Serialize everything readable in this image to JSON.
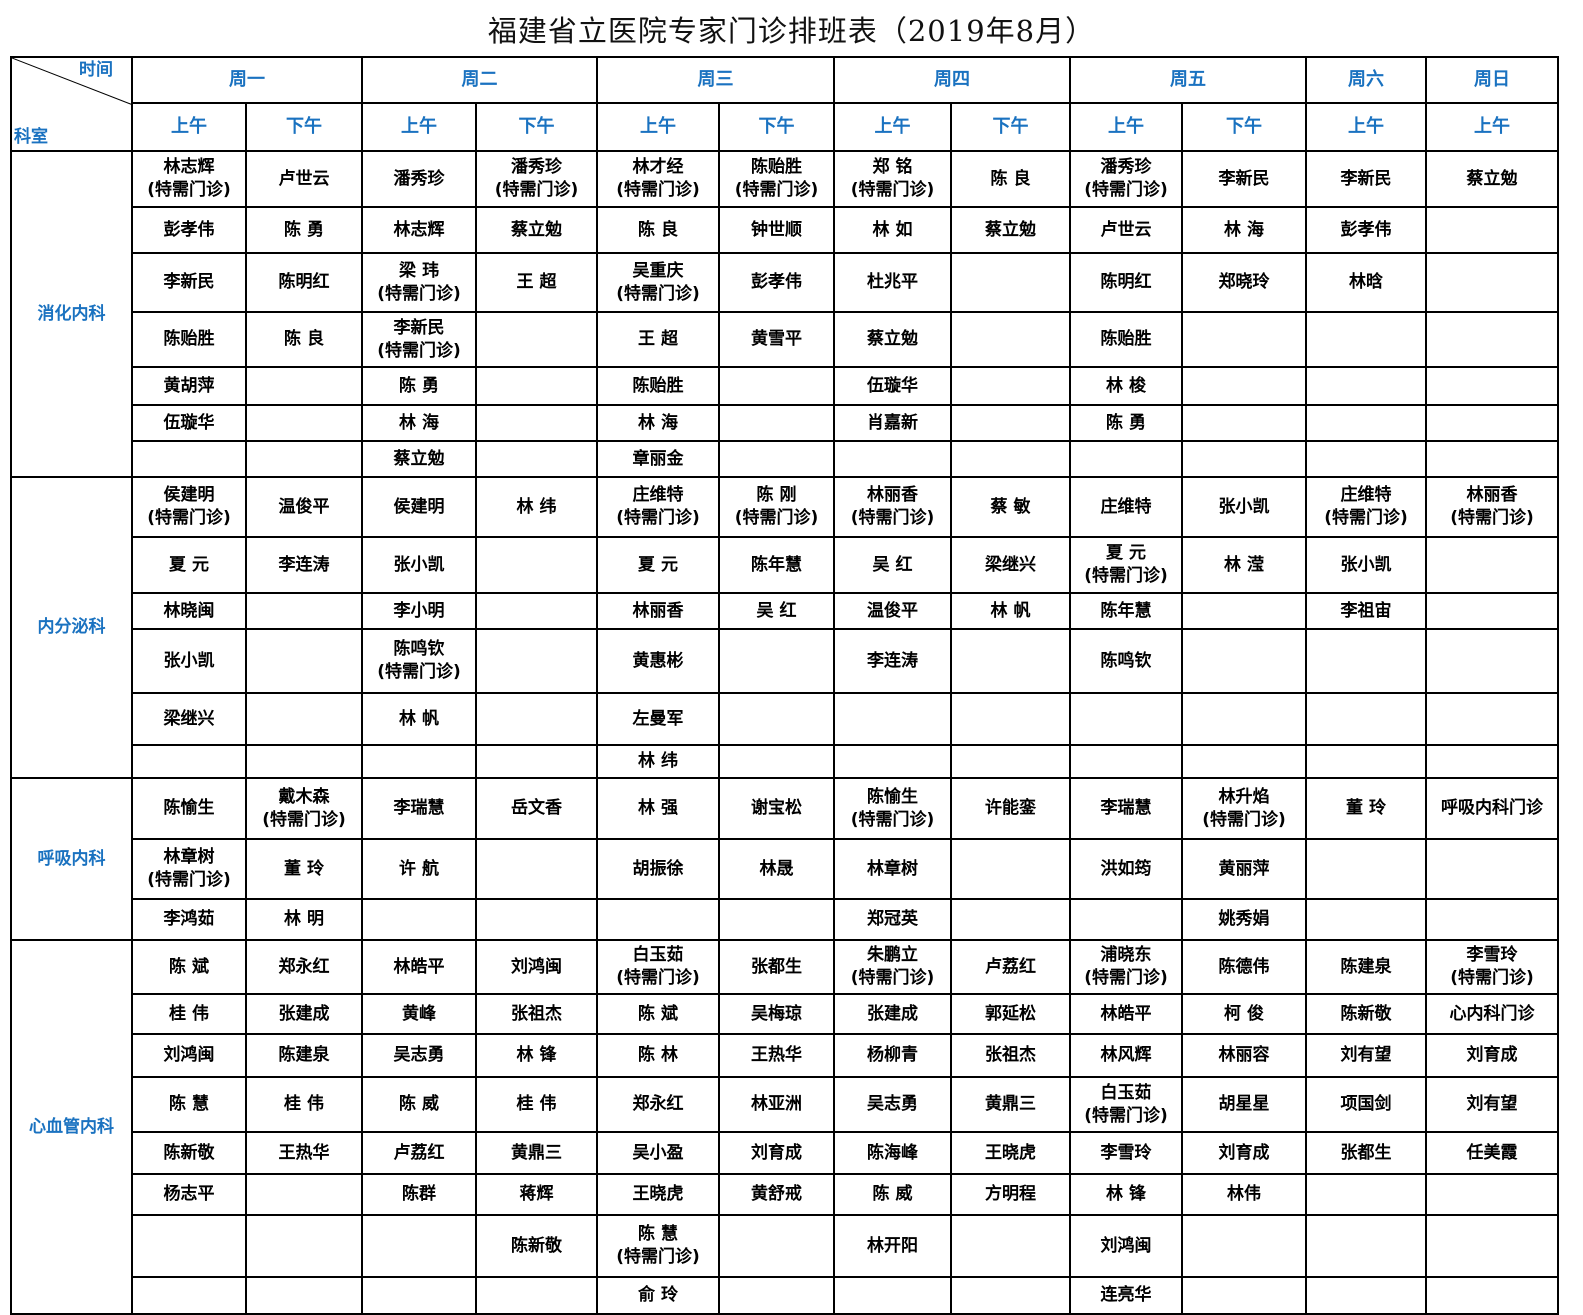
{
  "title": "福建省立医院专家门诊排班表（2019年8月）",
  "corner": {
    "time_label": "时间",
    "dept_label": "科室"
  },
  "days": [
    {
      "label": "周一",
      "span": 2
    },
    {
      "label": "周二",
      "span": 2
    },
    {
      "label": "周三",
      "span": 2
    },
    {
      "label": "周四",
      "span": 2
    },
    {
      "label": "周五",
      "span": 2
    },
    {
      "label": "周六",
      "span": 1
    },
    {
      "label": "周日",
      "span": 1
    }
  ],
  "sessions": [
    "上午",
    "下午",
    "上午",
    "下午",
    "上午",
    "下午",
    "上午",
    "下午",
    "上午",
    "下午",
    "上午",
    "上午"
  ],
  "departments": [
    {
      "name": "消化内科",
      "rows": [
        [
          "林志辉\n(特需门诊)",
          "卢世云",
          "潘秀珍",
          "潘秀珍\n(特需门诊)",
          "林才经\n(特需门诊)",
          "陈贻胜\n(特需门诊)",
          "郑 铭\n(特需门诊)",
          "陈 良",
          "潘秀珍\n(特需门诊)",
          "李新民",
          "李新民",
          "蔡立勉"
        ],
        [
          "彭孝伟",
          "陈 勇",
          "林志辉",
          "蔡立勉",
          "陈 良",
          "钟世顺",
          "林 如",
          "蔡立勉",
          "卢世云",
          "林 海",
          "彭孝伟",
          ""
        ],
        [
          "李新民",
          "陈明红",
          "梁 玮\n(特需门诊)",
          "王 超",
          "吴重庆\n(特需门诊)",
          "彭孝伟",
          "杜兆平",
          "",
          "陈明红",
          "郑晓玲",
          "林晗",
          ""
        ],
        [
          "陈贻胜",
          "陈 良",
          "李新民\n(特需门诊)",
          "",
          "王 超",
          "黄雪平",
          "蔡立勉",
          "",
          "陈贻胜",
          "",
          "",
          ""
        ],
        [
          "黄胡萍",
          "",
          "陈 勇",
          "",
          "陈贻胜",
          "",
          "伍璇华",
          "",
          "林 梭",
          "",
          "",
          ""
        ],
        [
          "伍璇华",
          "",
          "林 海",
          "",
          "林 海",
          "",
          "肖嘉新",
          "",
          "陈 勇",
          "",
          "",
          ""
        ],
        [
          "",
          "",
          "蔡立勉",
          "",
          "章丽金",
          "",
          "",
          "",
          "",
          "",
          "",
          ""
        ]
      ]
    },
    {
      "name": "内分泌科",
      "rows": [
        [
          "侯建明\n(特需门诊)",
          "温俊平",
          "侯建明",
          "林 纬",
          "庄维特\n(特需门诊)",
          "陈 刚\n(特需门诊)",
          "林丽香\n(特需门诊)",
          "蔡 敏",
          "庄维特",
          "张小凯",
          "庄维特\n(特需门诊)",
          "林丽香\n(特需门诊)"
        ],
        [
          "夏 元",
          "李连涛",
          "张小凯",
          "",
          "夏 元",
          "陈年慧",
          "吴 红",
          "梁继兴",
          "夏 元\n(特需门诊)",
          "林 滢",
          "张小凯",
          ""
        ],
        [
          "林晓闽",
          "",
          "李小明",
          "",
          "林丽香",
          "吴 红",
          "温俊平",
          "林 帆",
          "陈年慧",
          "",
          "李祖宙",
          ""
        ],
        [
          "张小凯",
          "",
          "陈鸣钦\n(特需门诊)",
          "",
          "黄惠彬",
          "",
          "李连涛",
          "",
          "陈鸣钦",
          "",
          "",
          ""
        ],
        [
          "梁继兴",
          "",
          "林 帆",
          "",
          "左曼军",
          "",
          "",
          "",
          "",
          "",
          "",
          ""
        ],
        [
          "",
          "",
          "",
          "",
          "林 纬",
          "",
          "",
          "",
          "",
          "",
          "",
          ""
        ]
      ]
    },
    {
      "name": "呼吸内科",
      "rows": [
        [
          "陈愉生",
          "戴木森\n(特需门诊)",
          "李瑞慧",
          "岳文香",
          "林 强",
          "谢宝松",
          "陈愉生\n(特需门诊)",
          "许能銮",
          "李瑞慧",
          "林升焰\n(特需门诊)",
          "董 玲",
          "呼吸内科门诊"
        ],
        [
          "林章树\n(特需门诊)",
          "董 玲",
          "许 航",
          "",
          "胡振徐",
          "林晟",
          "林章树",
          "",
          "洪如筠",
          "黄丽萍",
          "",
          ""
        ],
        [
          "李鸿茹",
          "林 明",
          "",
          "",
          "",
          "",
          "郑冠英",
          "",
          "",
          "姚秀娟",
          "",
          ""
        ]
      ]
    },
    {
      "name": "心血管内科",
      "rows": [
        [
          "陈 斌",
          "郑永红",
          "林皓平",
          "刘鸿闽",
          "白玉茹\n(特需门诊)",
          "张都生",
          "朱鹏立\n(特需门诊)",
          "卢荔红",
          "浦晓东\n(特需门诊)",
          "陈德伟",
          "陈建泉",
          "李雪玲\n(特需门诊)"
        ],
        [
          "桂 伟",
          "张建成",
          "黄峰",
          "张祖杰",
          "陈 斌",
          "吴梅琼",
          "张建成",
          "郭延松",
          "林皓平",
          "柯 俊",
          "陈新敬",
          "心内科门诊"
        ],
        [
          "刘鸿闽",
          "陈建泉",
          "吴志勇",
          "林 锋",
          "陈 林",
          "王热华",
          "杨柳青",
          "张祖杰",
          "林风辉",
          "林丽容",
          "刘有望",
          "刘育成"
        ],
        [
          "陈 慧",
          "桂 伟",
          "陈 威",
          "桂 伟",
          "郑永红",
          "林亚洲",
          "吴志勇",
          "黄鼎三",
          "白玉茹\n(特需门诊)",
          "胡星星",
          "项国剑",
          "刘有望"
        ],
        [
          "陈新敬",
          "王热华",
          "卢荔红",
          "黄鼎三",
          "吴小盈",
          "刘育成",
          "陈海峰",
          "王晓虎",
          "李雪玲",
          "刘育成",
          "张都生",
          "任美霞"
        ],
        [
          "杨志平",
          "",
          "陈群",
          "蒋辉",
          "王晓虎",
          "黄舒戒",
          "陈 威",
          "方明程",
          "林 锋",
          "林伟",
          "",
          ""
        ],
        [
          "",
          "",
          "",
          "陈新敬",
          "陈 慧\n(特需门诊)",
          "",
          "林开阳",
          "",
          "刘鸿闽",
          "",
          "",
          ""
        ],
        [
          "",
          "",
          "",
          "",
          "俞 玲",
          "",
          "",
          "",
          "连亮华",
          "",
          "",
          ""
        ]
      ]
    }
  ]
}
